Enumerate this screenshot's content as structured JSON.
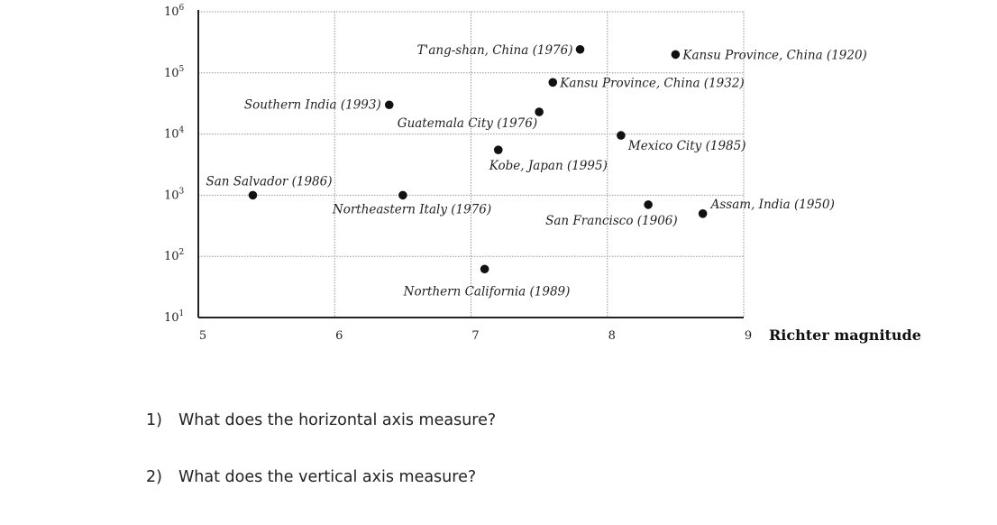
{
  "chart_data": {
    "type": "scatter",
    "xlabel": "Richter magnitude",
    "ylabel": "",
    "x_ticks": [
      "5",
      "6",
      "7",
      "8",
      "9"
    ],
    "y_ticks": [
      {
        "base": "10",
        "exp": "6"
      },
      {
        "base": "10",
        "exp": "5"
      },
      {
        "base": "10",
        "exp": "4"
      },
      {
        "base": "10",
        "exp": "3"
      },
      {
        "base": "10",
        "exp": "2"
      },
      {
        "base": "10",
        "exp": "1"
      }
    ],
    "xlim": [
      5,
      9
    ],
    "ylim": [
      10,
      1000000
    ],
    "y_scale": "log",
    "grid": true,
    "points": [
      {
        "label": "T'ang-shan, China (1976)",
        "x": 7.8,
        "y": 242000
      },
      {
        "label": "Kansu Province, China (1920)",
        "x": 8.5,
        "y": 200000
      },
      {
        "label": "Kansu Province, China (1932)",
        "x": 7.6,
        "y": 70000
      },
      {
        "label": "Southern India (1993)",
        "x": 6.4,
        "y": 30000
      },
      {
        "label": "Guatemala City (1976)",
        "x": 7.5,
        "y": 23000
      },
      {
        "label": "Mexico City (1985)",
        "x": 8.1,
        "y": 9500
      },
      {
        "label": "Kobe, Japan (1995)",
        "x": 7.2,
        "y": 5500
      },
      {
        "label": "San Salvador (1986)",
        "x": 5.4,
        "y": 1000
      },
      {
        "label": "Northeastern Italy (1976)",
        "x": 6.5,
        "y": 1000
      },
      {
        "label": "San Francisco (1906)",
        "x": 8.3,
        "y": 700
      },
      {
        "label": "Assam, India (1950)",
        "x": 8.7,
        "y": 500
      },
      {
        "label": "Northern California (1989)",
        "x": 7.1,
        "y": 62
      }
    ]
  },
  "questions": [
    {
      "num": "1)",
      "text": "What does the horizontal axis measure?"
    },
    {
      "num": "2)",
      "text": "What does the vertical axis measure?"
    }
  ]
}
